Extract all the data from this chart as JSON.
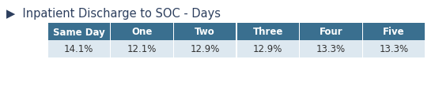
{
  "title": "▶  Inpatient Discharge to SOC - Days",
  "title_fontsize": 10.5,
  "title_color": "#2d3f5e",
  "headers": [
    "Same Day",
    "One",
    "Two",
    "Three",
    "Four",
    "Five"
  ],
  "values": [
    "14.1%",
    "12.1%",
    "12.9%",
    "12.9%",
    "13.3%",
    "13.3%"
  ],
  "header_bg_color": "#3a6f8f",
  "header_text_color": "#ffffff",
  "row_bg_color": "#dde8f0",
  "row_text_color": "#333333",
  "background_color": "#ffffff",
  "header_fontsize": 8.5,
  "value_fontsize": 8.5,
  "fig_width": 5.5,
  "fig_height": 1.14,
  "dpi": 100
}
